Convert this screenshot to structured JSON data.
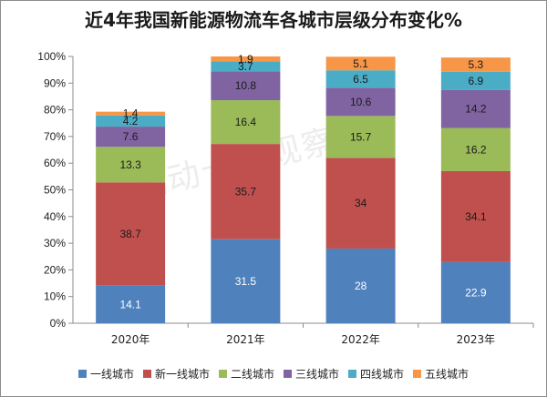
{
  "chart_data": {
    "type": "bar",
    "stacked": true,
    "title": "近4年我国新能源物流车各城市层级分布变化%",
    "watermark": "电动卡车观察",
    "categories": [
      "2020年",
      "2021年",
      "2022年",
      "2023年"
    ],
    "ylim": [
      0,
      100
    ],
    "yticks": [
      "0%",
      "10%",
      "20%",
      "30%",
      "40%",
      "50%",
      "60%",
      "70%",
      "80%",
      "90%",
      "100%"
    ],
    "grid": false,
    "legend_position": "bottom",
    "series": [
      {
        "name": "一线城市",
        "color": "#4f81bd",
        "values": [
          14.1,
          31.5,
          28,
          22.9
        ],
        "labels": [
          "14.1",
          "31.5",
          "28",
          "22.9"
        ]
      },
      {
        "name": "新一线城市",
        "color": "#c0504d",
        "values": [
          38.7,
          35.7,
          34,
          34.1
        ],
        "labels": [
          "38.7",
          "35.7",
          "34",
          "34.1"
        ]
      },
      {
        "name": "二线城市",
        "color": "#9bbb59",
        "values": [
          13.3,
          16.4,
          15.7,
          16.2
        ],
        "labels": [
          "13.3",
          "16.4",
          "15.7",
          "16.2"
        ]
      },
      {
        "name": "三线城市",
        "color": "#8064a2",
        "values": [
          7.6,
          10.8,
          10.6,
          14.2
        ],
        "labels": [
          "7.6",
          "10.8",
          "10.6",
          "14.2"
        ]
      },
      {
        "name": "四线城市",
        "color": "#4bacc6",
        "values": [
          4.2,
          3.7,
          6.5,
          6.9
        ],
        "labels": [
          "4.2",
          "3.7",
          "6.5",
          "6.9"
        ]
      },
      {
        "name": "五线城市",
        "color": "#f79646",
        "values": [
          1.4,
          1.9,
          5.1,
          5.3
        ],
        "labels": [
          "1.4",
          "1.9",
          "5.1",
          "5.3"
        ]
      }
    ]
  }
}
